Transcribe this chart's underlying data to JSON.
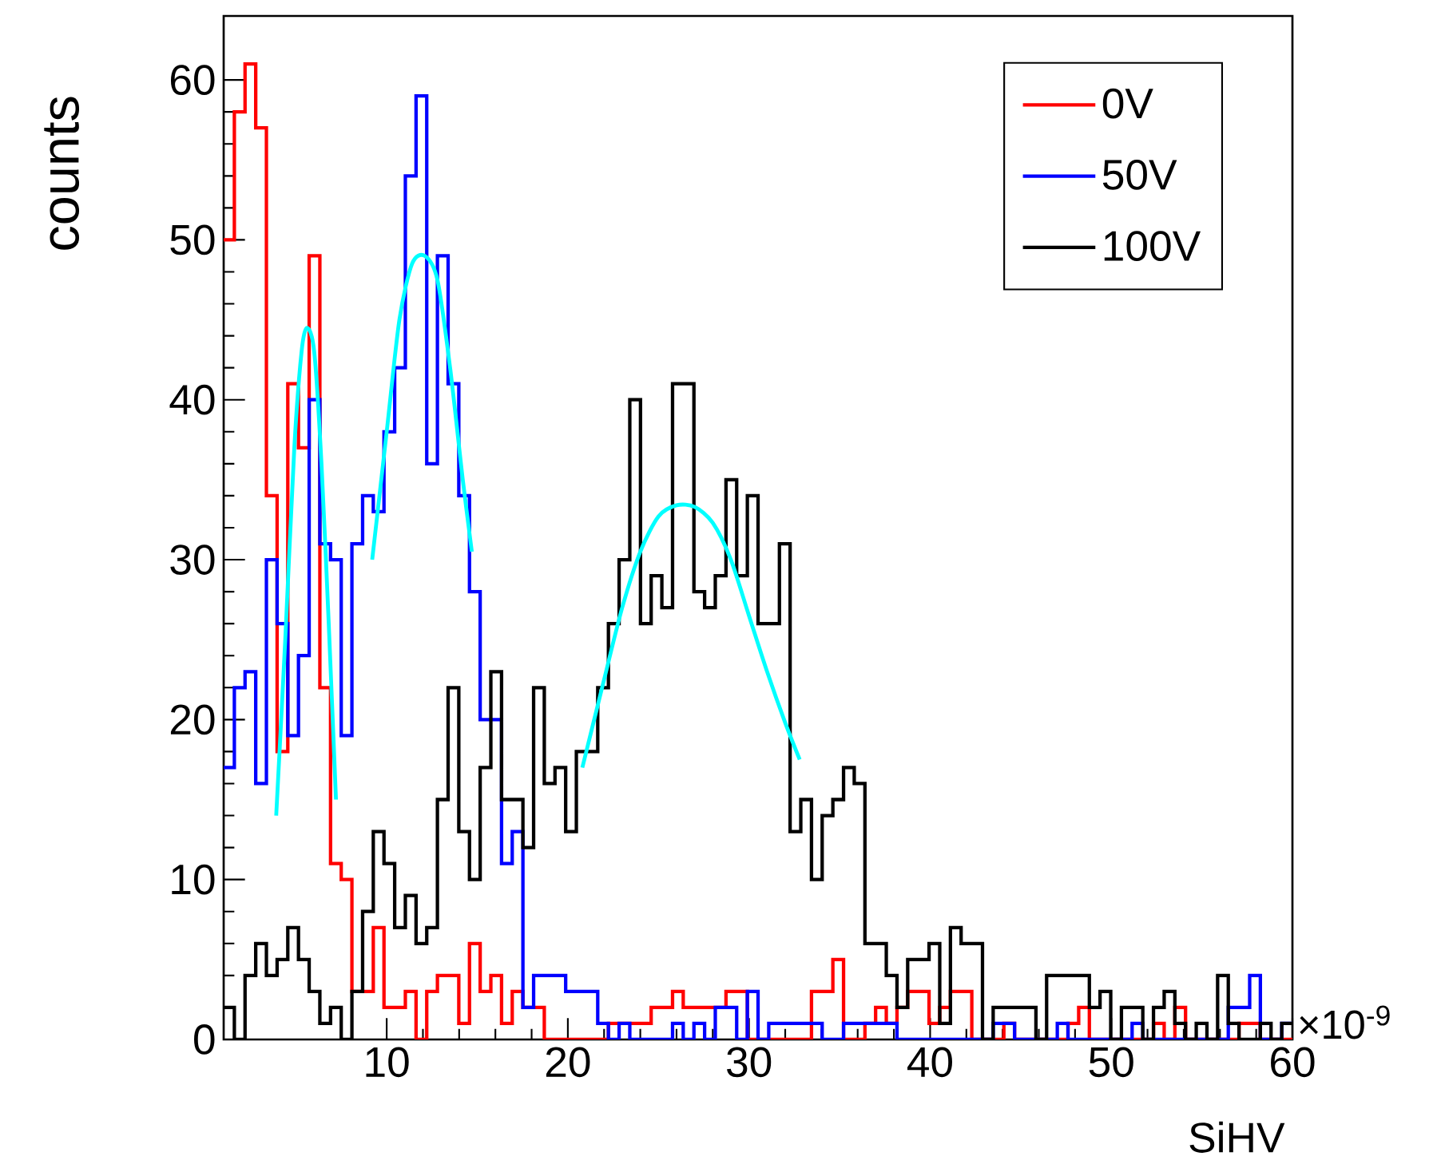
{
  "chart_data": {
    "type": "histogram",
    "xlabel": "SiHV",
    "ylabel": "counts",
    "annotations": [
      "×10$^{-9}$"
    ],
    "xlim": [
      1,
      60
    ],
    "ylim": [
      0,
      64
    ],
    "xticks": [
      10,
      20,
      30,
      40,
      50,
      60
    ],
    "yticks": [
      0,
      10,
      20,
      30,
      40,
      50,
      60
    ],
    "legend": "top right",
    "bins": [
      1,
      1.59,
      2.18,
      2.77,
      3.36,
      3.95,
      4.54,
      5.13,
      5.72,
      6.31,
      6.9,
      7.49,
      8.08,
      8.67,
      9.26,
      9.85,
      10.44,
      11.03,
      11.62,
      12.21,
      12.8,
      13.39,
      13.98,
      14.57,
      15.16,
      15.75,
      16.34,
      16.93,
      17.52,
      18.11,
      18.7,
      19.29,
      19.88,
      20.47,
      21.06,
      21.65,
      22.24,
      22.83,
      23.42,
      24.01,
      24.6,
      25.19,
      25.78,
      26.37,
      26.96,
      27.55,
      28.14,
      28.73,
      29.32,
      29.91,
      30.5,
      31.09,
      31.68,
      32.27,
      32.86,
      33.45,
      34.04,
      34.63,
      35.22,
      35.81,
      36.4,
      36.99,
      37.58,
      38.17,
      38.76,
      39.35,
      39.94,
      40.53,
      41.12,
      41.71,
      42.3,
      42.89,
      43.48,
      44.07,
      44.66,
      45.25,
      45.84,
      46.43,
      47.02,
      47.61,
      48.2,
      48.79,
      49.38,
      49.97,
      50.56,
      51.15,
      51.74,
      52.33,
      52.92,
      53.51,
      54.1,
      54.69,
      55.28,
      55.87,
      56.46,
      57.05,
      57.64,
      58.23,
      58.82,
      59.41,
      60
    ],
    "series": [
      {
        "name": "0V",
        "color": "#ff0000",
        "values": [
          50,
          58,
          61,
          57,
          34,
          18,
          41,
          37,
          49,
          22,
          11,
          10,
          3,
          3,
          7,
          2,
          2,
          3,
          0,
          3,
          4,
          4,
          1,
          6,
          3,
          4,
          1,
          3,
          2,
          2,
          0,
          0,
          0,
          0,
          0,
          0,
          1,
          1,
          1,
          1,
          2,
          2,
          3,
          2,
          2,
          2,
          2,
          3,
          3,
          0,
          0,
          0,
          0,
          0,
          0,
          3,
          3,
          5,
          0,
          0,
          1,
          2,
          1,
          2,
          3,
          3,
          1,
          2,
          3,
          3,
          0,
          0,
          0,
          1,
          0,
          0,
          0,
          0,
          0,
          1,
          2,
          0,
          0,
          0,
          0,
          0,
          0,
          1,
          0,
          2,
          0,
          0,
          0,
          0,
          0,
          1,
          1,
          0,
          0,
          0
        ]
      },
      {
        "name": "50V",
        "color": "#0000ff",
        "values": [
          17,
          22,
          23,
          16,
          30,
          26,
          19,
          24,
          40,
          31,
          30,
          19,
          31,
          34,
          33,
          38,
          42,
          54,
          59,
          36,
          49,
          41,
          34,
          28,
          20,
          20,
          11,
          13,
          2,
          4,
          4,
          4,
          3,
          3,
          3,
          1,
          0,
          1,
          0,
          0,
          0,
          0,
          1,
          0,
          1,
          0,
          2,
          2,
          0,
          3,
          0,
          1,
          1,
          1,
          1,
          1,
          0,
          0,
          1,
          1,
          1,
          1,
          1,
          0,
          0,
          0,
          0,
          0,
          0,
          0,
          0,
          0,
          1,
          1,
          0,
          0,
          0,
          0,
          1,
          0,
          0,
          0,
          0,
          0,
          0,
          1,
          0,
          0,
          0,
          0,
          0,
          0,
          0,
          0,
          2,
          2,
          4,
          0,
          0,
          1
        ]
      },
      {
        "name": "100V",
        "color": "#000000",
        "values": [
          2,
          0,
          4,
          6,
          4,
          5,
          7,
          5,
          3,
          1,
          2,
          0,
          3,
          8,
          13,
          11,
          7,
          9,
          6,
          7,
          15,
          22,
          13,
          10,
          17,
          23,
          15,
          15,
          12,
          22,
          16,
          17,
          13,
          18,
          18,
          22,
          26,
          30,
          40,
          26,
          29,
          27,
          41,
          41,
          28,
          27,
          29,
          35,
          29,
          34,
          26,
          26,
          31,
          13,
          15,
          10,
          14,
          15,
          17,
          16,
          6,
          6,
          4,
          2,
          5,
          5,
          6,
          1,
          7,
          6,
          6,
          0,
          2,
          2,
          2,
          2,
          0,
          4,
          4,
          4,
          4,
          2,
          3,
          0,
          2,
          2,
          0,
          2,
          3,
          1,
          0,
          1,
          0,
          4,
          1,
          0,
          0,
          1,
          0,
          1
        ]
      },
      {
        "type": "line",
        "color": "#00ffff",
        "x": [
          3.9,
          4.4,
          4.9,
          5.3,
          5.6,
          6.0,
          6.4,
          6.8,
          7.2
        ],
        "values": [
          14,
          25,
          37,
          43,
          44.5,
          43,
          36,
          26,
          15
        ]
      },
      {
        "type": "line",
        "color": "#00ffff",
        "x": [
          9.2,
          10,
          10.7,
          11.4,
          12.1,
          12.8,
          13.5,
          14.2,
          14.7
        ],
        "values": [
          30,
          38,
          45,
          48.5,
          49,
          47.5,
          42,
          35,
          30.5
        ]
      },
      {
        "type": "line",
        "color": "#00ffff",
        "x": [
          20.8,
          22,
          23,
          24,
          25,
          26,
          27,
          28,
          29,
          30,
          31,
          32,
          32.8
        ],
        "values": [
          17,
          22.5,
          27,
          30.5,
          32.7,
          33.4,
          33.3,
          32.3,
          30,
          26.5,
          23,
          19.8,
          17.5
        ]
      }
    ]
  }
}
